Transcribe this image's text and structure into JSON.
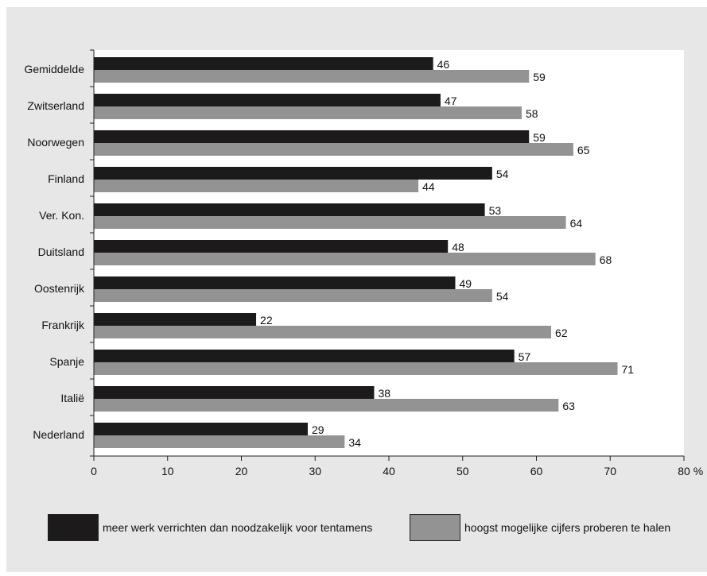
{
  "chart_data": {
    "type": "bar",
    "orientation": "horizontal",
    "categories": [
      "Gemiddelde",
      "Zwitserland",
      "Noorwegen",
      "Finland",
      "Ver. Kon.",
      "Duitsland",
      "Oostenrijk",
      "Frankrijk",
      "Spanje",
      "Italië",
      "Nederland"
    ],
    "series": [
      {
        "name": "meer werk verrichten dan noodzakelijk voor tentamens",
        "color": "#1c1a1b",
        "values": [
          46,
          47,
          59,
          54,
          53,
          48,
          49,
          22,
          57,
          38,
          29
        ]
      },
      {
        "name": "hoogst mogelijke cijfers proberen te halen",
        "color": "#939393",
        "values": [
          59,
          58,
          65,
          44,
          64,
          68,
          54,
          62,
          71,
          63,
          34
        ]
      }
    ],
    "x_ticks": [
      0,
      10,
      20,
      30,
      40,
      50,
      60,
      70,
      80
    ],
    "x_unit": "%",
    "xlim": [
      0,
      80
    ],
    "grid": false,
    "legend_position": "bottom",
    "background_color": "#e6e7e6",
    "plot_background": "#ffffff"
  }
}
